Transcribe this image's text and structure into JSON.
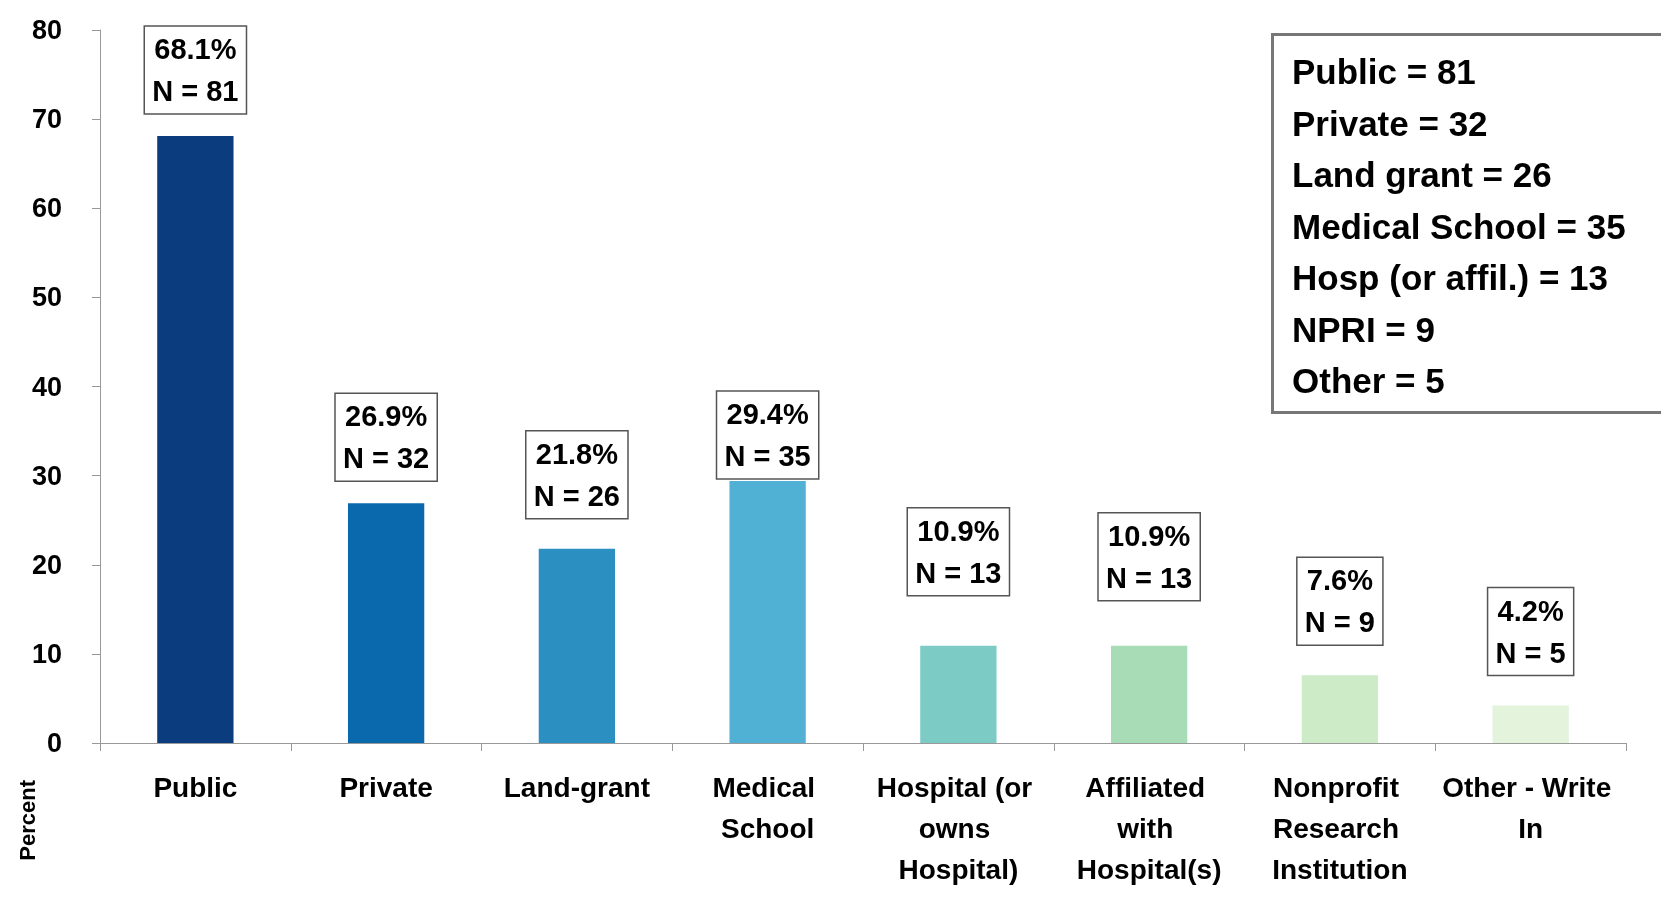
{
  "chart_data": {
    "type": "bar",
    "ylabel": "Percent",
    "categories": [
      "Public",
      "Private",
      "Land-grant",
      "Medical School",
      "Hospital (or owns Hospital)",
      "Affiliated with Hospital(s)",
      "Nonprofit Research Institution",
      "Other - Write In"
    ],
    "values": [
      68.1,
      26.9,
      21.8,
      29.4,
      10.9,
      10.9,
      7.6,
      4.2
    ],
    "colors": [
      "#0b3c7d",
      "#0a69ad",
      "#2c8fc2",
      "#50b1d4",
      "#7ccbc4",
      "#a8dcb6",
      "#cdebc6",
      "#e3f3dc"
    ],
    "value_labels": [
      "68.1%\nN = 81",
      "26.9%\nN = 32",
      "21.8%\nN = 26",
      "29.4%\nN = 35",
      "10.9%\nN = 13",
      "10.9%\nN = 13",
      "7.6%\nN = 9",
      "4.2%\nN = 5"
    ],
    "ylim": [
      0,
      80
    ],
    "yticks": [
      0,
      10,
      20,
      30,
      40,
      50,
      60,
      70,
      80
    ],
    "grid": false,
    "annotations": [
      "Public = 81",
      "Private = 32",
      "Land grant = 26",
      "Medical School = 35",
      "Hosp (or affil.) = 13",
      "NPRI = 9",
      "Other = 5"
    ]
  }
}
